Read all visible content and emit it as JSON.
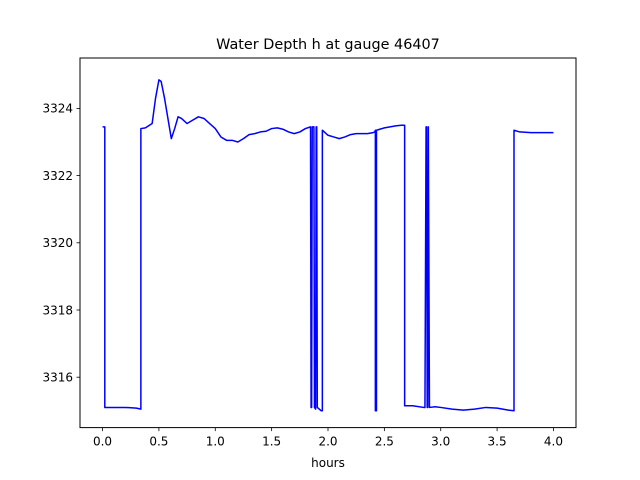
{
  "chart_data": {
    "type": "line",
    "title": "Water Depth h at gauge 46407",
    "xlabel": "hours",
    "ylabel": "",
    "xlim": [
      -0.2,
      4.2
    ],
    "ylim": [
      3314.5,
      3325.5
    ],
    "xticks": [
      0.0,
      0.5,
      1.0,
      1.5,
      2.0,
      2.5,
      3.0,
      3.5,
      4.0
    ],
    "xtick_labels": [
      "0.0",
      "0.5",
      "1.0",
      "1.5",
      "2.0",
      "2.5",
      "3.0",
      "3.5",
      "4.0"
    ],
    "yticks": [
      3316,
      3318,
      3320,
      3322,
      3324
    ],
    "ytick_labels": [
      "3316",
      "3318",
      "3320",
      "3322",
      "3324"
    ],
    "grid": false,
    "series": [
      {
        "color": "#0000ff",
        "x": [
          0.0,
          0.02,
          0.02,
          0.1,
          0.2,
          0.3,
          0.34,
          0.34,
          0.38,
          0.44,
          0.47,
          0.5,
          0.52,
          0.55,
          0.58,
          0.61,
          0.64,
          0.67,
          0.7,
          0.75,
          0.8,
          0.85,
          0.9,
          0.95,
          1.0,
          1.05,
          1.1,
          1.15,
          1.2,
          1.25,
          1.3,
          1.35,
          1.4,
          1.45,
          1.5,
          1.55,
          1.6,
          1.65,
          1.7,
          1.75,
          1.8,
          1.845,
          1.85,
          1.855,
          1.86,
          1.875,
          1.88,
          1.89,
          1.895,
          1.9,
          1.905,
          1.94,
          1.95,
          1.95,
          2.0,
          2.05,
          2.1,
          2.15,
          2.2,
          2.25,
          2.3,
          2.35,
          2.4,
          2.415,
          2.42,
          2.42,
          2.425,
          2.43,
          2.43,
          2.5,
          2.55,
          2.6,
          2.65,
          2.68,
          2.68,
          2.75,
          2.85,
          2.86,
          2.87,
          2.875,
          2.88,
          2.885,
          2.89,
          2.9,
          2.95,
          3.0,
          3.1,
          3.2,
          3.3,
          3.4,
          3.5,
          3.6,
          3.65,
          3.65,
          3.7,
          3.8,
          3.9,
          4.0
        ],
        "y": [
          3323.45,
          3323.45,
          3315.1,
          3315.1,
          3315.1,
          3315.08,
          3315.05,
          3323.4,
          3323.42,
          3323.55,
          3324.3,
          3324.85,
          3324.8,
          3324.3,
          3323.7,
          3323.1,
          3323.4,
          3323.75,
          3323.7,
          3323.55,
          3323.65,
          3323.75,
          3323.7,
          3323.55,
          3323.4,
          3323.15,
          3323.05,
          3323.05,
          3323.0,
          3323.1,
          3323.22,
          3323.25,
          3323.3,
          3323.32,
          3323.4,
          3323.42,
          3323.38,
          3323.3,
          3323.25,
          3323.3,
          3323.4,
          3323.45,
          3315.1,
          3315.1,
          3323.45,
          3323.45,
          3315.1,
          3315.05,
          3323.45,
          3323.45,
          3315.1,
          3315.0,
          3315.0,
          3323.35,
          3323.2,
          3323.15,
          3323.1,
          3323.15,
          3323.22,
          3323.25,
          3323.25,
          3323.25,
          3323.28,
          3323.3,
          3323.35,
          3315.0,
          3315.0,
          3315.0,
          3323.35,
          3323.42,
          3323.45,
          3323.48,
          3323.5,
          3323.5,
          3315.15,
          3315.15,
          3315.1,
          3315.1,
          3323.45,
          3323.45,
          3315.1,
          3315.1,
          3323.45,
          3315.1,
          3315.12,
          3315.1,
          3315.05,
          3315.02,
          3315.05,
          3315.1,
          3315.08,
          3315.02,
          3315.0,
          3323.35,
          3323.3,
          3323.28,
          3323.28,
          3323.28
        ]
      }
    ]
  }
}
